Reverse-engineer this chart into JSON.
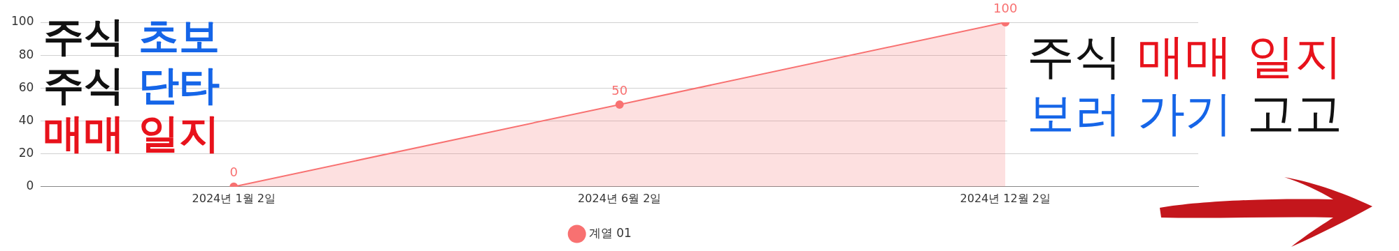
{
  "chart_data": {
    "type": "area",
    "categories": [
      "2024년 1월 2일",
      "2024년 6월 2일",
      "2024년 12월 2일"
    ],
    "series": [
      {
        "name": "계열 01",
        "color": "#f87171",
        "values": [
          0,
          50,
          100
        ]
      }
    ],
    "ylim": [
      0,
      100
    ],
    "yticks": [
      0,
      20,
      40,
      60,
      80,
      100
    ],
    "grid": "y",
    "legend": "bottom",
    "marker": "circle",
    "data_labels": true,
    "annotations": [
      "주식",
      "초보",
      "주식",
      "단타",
      "매매 일지",
      "주식",
      "매매 일지",
      "보러 가기",
      "고고"
    ]
  }
}
